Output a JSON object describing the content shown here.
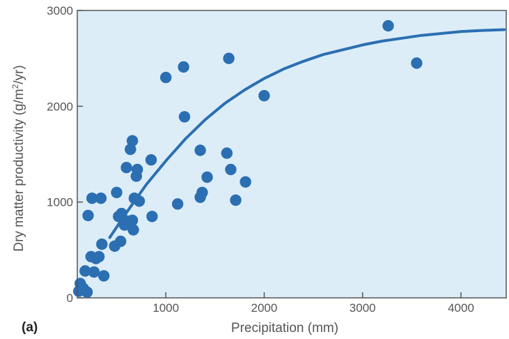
{
  "chart_data": {
    "type": "scatter",
    "panel_label": "(a)",
    "xlabel": "Precipitation (mm)",
    "ylabel_parts": [
      "Dry matter productivity (g/m",
      "2",
      "/yr)"
    ],
    "xlim": [
      100,
      4460
    ],
    "ylim": [
      0,
      3000
    ],
    "x_ticks": [
      1000,
      2000,
      3000,
      4000
    ],
    "y_ticks": [
      0,
      1000,
      2000,
      3000
    ],
    "x_tick_labels": [
      "1000",
      "2000",
      "3000",
      "4000"
    ],
    "y_tick_labels": [
      "0",
      "1000",
      "2000",
      "3000"
    ],
    "colors": {
      "plot_background": "#dcedf8",
      "marker": "#2b6fb2",
      "curve": "#2b6fb2",
      "frame": "#555555"
    },
    "series": [
      {
        "points": [
          [
            115,
            70
          ],
          [
            130,
            150
          ],
          [
            160,
            100
          ],
          [
            180,
            280
          ],
          [
            200,
            60
          ],
          [
            210,
            860
          ],
          [
            240,
            430
          ],
          [
            250,
            1040
          ],
          [
            270,
            270
          ],
          [
            290,
            410
          ],
          [
            320,
            430
          ],
          [
            340,
            1040
          ],
          [
            350,
            560
          ],
          [
            370,
            230
          ],
          [
            480,
            540
          ],
          [
            500,
            1100
          ],
          [
            520,
            850
          ],
          [
            540,
            590
          ],
          [
            550,
            880
          ],
          [
            580,
            760
          ],
          [
            600,
            1360
          ],
          [
            620,
            800
          ],
          [
            640,
            1550
          ],
          [
            660,
            1640
          ],
          [
            660,
            810
          ],
          [
            670,
            710
          ],
          [
            680,
            1040
          ],
          [
            700,
            1270
          ],
          [
            710,
            1340
          ],
          [
            730,
            1010
          ],
          [
            850,
            1440
          ],
          [
            860,
            850
          ],
          [
            1000,
            2300
          ],
          [
            1120,
            980
          ],
          [
            1180,
            2410
          ],
          [
            1190,
            1890
          ],
          [
            1350,
            1540
          ],
          [
            1350,
            1050
          ],
          [
            1370,
            1100
          ],
          [
            1420,
            1260
          ],
          [
            1620,
            1510
          ],
          [
            1640,
            2500
          ],
          [
            1660,
            1340
          ],
          [
            1710,
            1020
          ],
          [
            1810,
            1210
          ],
          [
            2000,
            2110
          ],
          [
            3260,
            2840
          ],
          [
            3550,
            2450
          ]
        ]
      }
    ],
    "fit_curve": [
      [
        430,
        630
      ],
      [
        600,
        890
      ],
      [
        800,
        1180
      ],
      [
        1000,
        1430
      ],
      [
        1200,
        1660
      ],
      [
        1400,
        1860
      ],
      [
        1600,
        2030
      ],
      [
        1800,
        2170
      ],
      [
        2000,
        2290
      ],
      [
        2200,
        2390
      ],
      [
        2400,
        2470
      ],
      [
        2600,
        2540
      ],
      [
        2800,
        2590
      ],
      [
        3000,
        2640
      ],
      [
        3200,
        2680
      ],
      [
        3400,
        2710
      ],
      [
        3600,
        2740
      ],
      [
        3800,
        2760
      ],
      [
        4000,
        2780
      ],
      [
        4200,
        2790
      ],
      [
        4440,
        2800
      ]
    ]
  }
}
